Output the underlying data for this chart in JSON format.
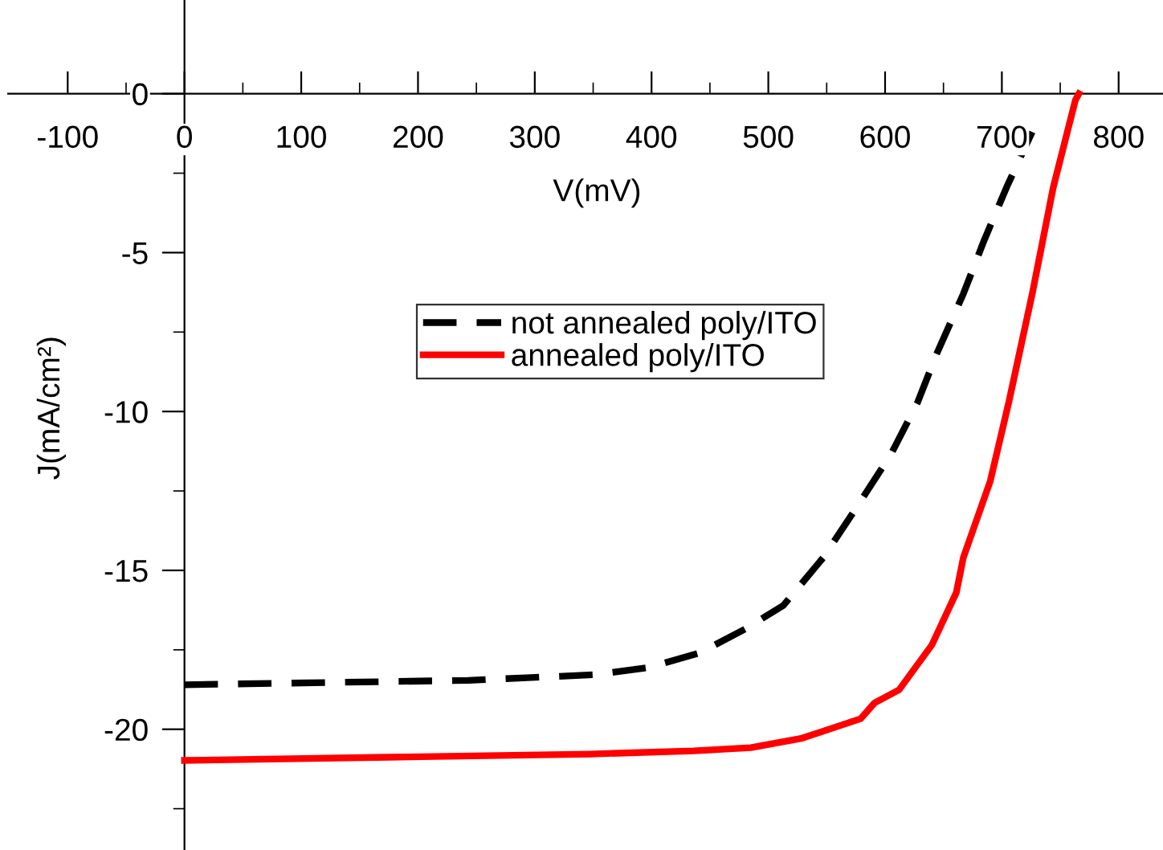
{
  "chart_data": {
    "type": "line",
    "xlabel": "V(mV)",
    "ylabel": "J(mA/cm²)",
    "xlim": [
      -151,
      838
    ],
    "ylim": [
      -23.8,
      2.95
    ],
    "xticks": [
      -100,
      0,
      100,
      200,
      300,
      400,
      500,
      600,
      700,
      800
    ],
    "yticks": [
      0,
      -5,
      -10,
      -15,
      -20
    ],
    "grid": false,
    "legend": "top",
    "marker": "none",
    "series": [
      {
        "name": "not annealed poly/ITO",
        "color": "#000000",
        "line_style": "dashed",
        "x": [
          0,
          243,
          293,
          353,
          397,
          441,
          480,
          513,
          547,
          575,
          605,
          628,
          644,
          667,
          685,
          704,
          726
        ],
        "values": [
          -18.6,
          -18.46,
          -18.38,
          -18.28,
          -18.06,
          -17.6,
          -16.85,
          -16.1,
          -14.6,
          -13.05,
          -11.35,
          -9.7,
          -8.2,
          -6.3,
          -4.6,
          -2.95,
          -1.2
        ]
      },
      {
        "name": "annealed poly/ITO",
        "color": "#ff0000",
        "line_style": "solid",
        "x": [
          0,
          175,
          348,
          436,
          485,
          529,
          579,
          591,
          612,
          640,
          661,
          667,
          690,
          706,
          726,
          744,
          763,
          766
        ],
        "values": [
          -20.98,
          -20.88,
          -20.78,
          -20.68,
          -20.58,
          -20.28,
          -19.67,
          -19.17,
          -18.76,
          -17.35,
          -15.7,
          -14.6,
          -12.2,
          -9.7,
          -6.3,
          -2.95,
          -0.2,
          0
        ]
      }
    ]
  }
}
